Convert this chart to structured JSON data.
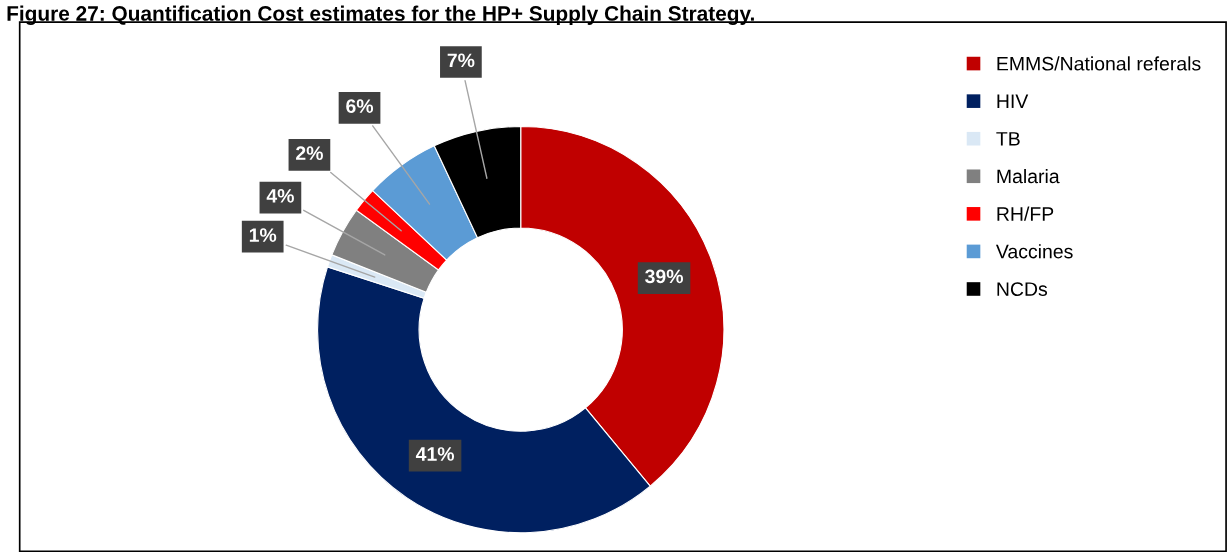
{
  "chart_data": {
    "type": "donut",
    "title": "Figure 27: Quantification Cost estimates for the HP+ Supply Chain Strategy.",
    "categories": [
      "EMMS/National referals",
      "HIV",
      "TB",
      "Malaria",
      "RH/FP",
      "Vaccines",
      "NCDs"
    ],
    "values": [
      39,
      41,
      1,
      4,
      2,
      6,
      7
    ],
    "colors": [
      "#c00000",
      "#002060",
      "#dae8f5",
      "#808080",
      "#ff0000",
      "#5b9bd5",
      "#000000"
    ],
    "value_labels": [
      "39%",
      "41%",
      "1%",
      "4%",
      "2%",
      "6%",
      "7%"
    ],
    "legend": "top right"
  }
}
